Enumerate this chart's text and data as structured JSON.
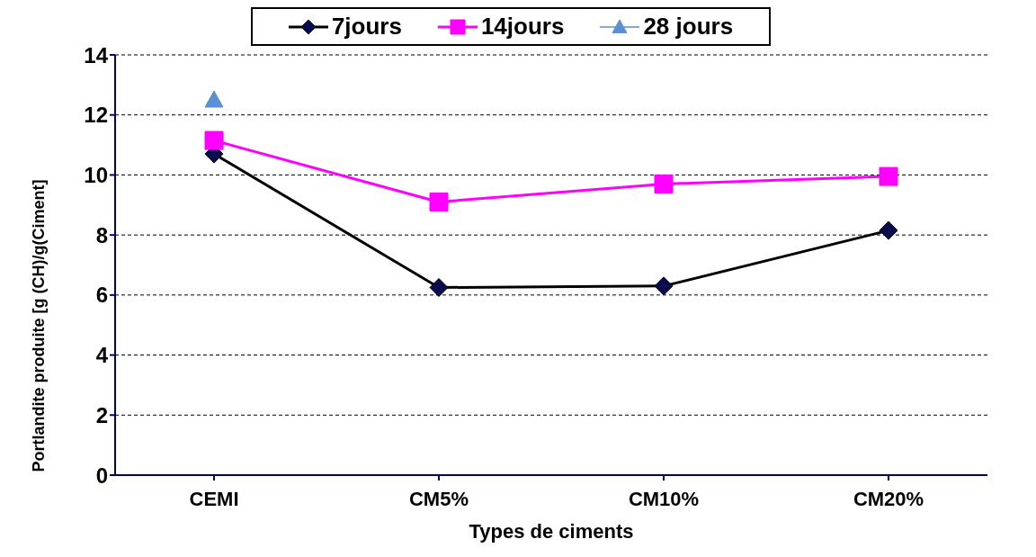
{
  "chart_data": {
    "type": "line",
    "xlabel": "Types de ciments",
    "ylabel": "Portlandite produite [g (CH)/g(Ciment]",
    "categories": [
      "CEMI",
      "CM5%",
      "CM10%",
      "CM20%"
    ],
    "series": [
      {
        "name": "7jours",
        "color": "#0a0a50",
        "marker": "diamond",
        "values": [
          10.7,
          6.25,
          6.3,
          8.15
        ]
      },
      {
        "name": "14jours",
        "color": "#ff00ff",
        "marker": "square",
        "values": [
          11.15,
          9.1,
          9.7,
          9.95
        ]
      },
      {
        "name": "28 jours",
        "color": "#5b8fd6",
        "marker": "triangle",
        "values": [
          12.5,
          null,
          null,
          null
        ]
      }
    ],
    "ylim": [
      0,
      14
    ],
    "yticks": [
      0,
      2,
      4,
      6,
      8,
      10,
      12,
      14
    ],
    "grid": "y",
    "legend": "top"
  }
}
